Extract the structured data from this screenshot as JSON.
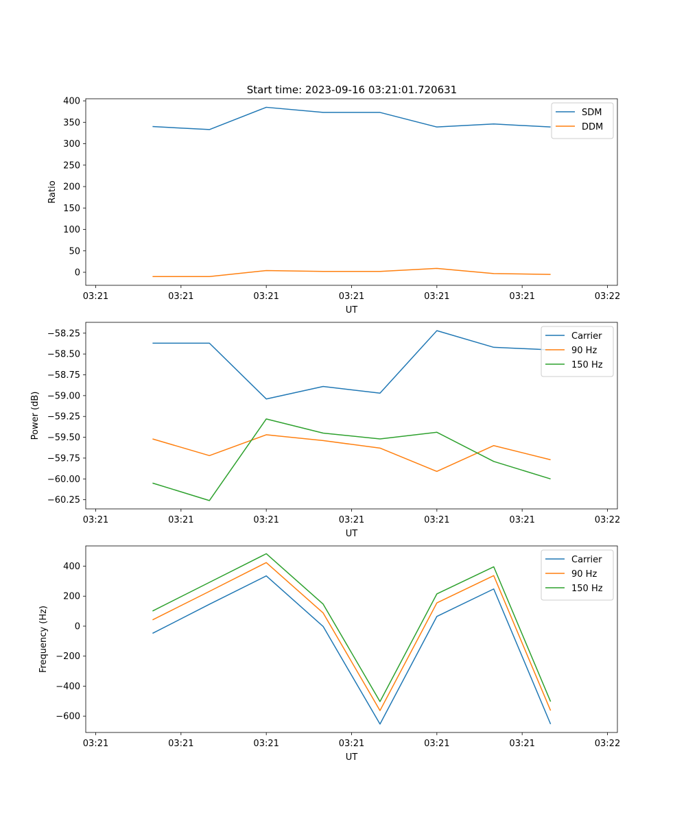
{
  "title": "Start time: 2023-09-16 03:21:01.720631",
  "colors": {
    "blue": "#1f77b4",
    "orange": "#ff7f0e",
    "green": "#2ca02c"
  },
  "chart_data": [
    {
      "type": "line",
      "title": "Start time: 2023-09-16 03:21:01.720631",
      "xlabel": "UT",
      "ylabel": "Ratio",
      "x_tick_labels": [
        "03:21",
        "03:21",
        "03:21",
        "03:21",
        "03:21",
        "03:21",
        "03:22"
      ],
      "y_ticks": [
        0,
        50,
        100,
        150,
        200,
        250,
        300,
        350,
        400
      ],
      "y_tick_labels": [
        "0",
        "50",
        "100",
        "150",
        "200",
        "250",
        "300",
        "350",
        "400"
      ],
      "ylim": [
        -30.4,
        404.9
      ],
      "xlim": [
        -0.175,
        9.175
      ],
      "x": [
        1,
        2,
        3,
        4,
        5,
        6,
        7,
        8
      ],
      "series": [
        {
          "name": "SDM",
          "color": "#1f77b4",
          "values": [
            340,
            333,
            385,
            373,
            373,
            339,
            346,
            339
          ]
        },
        {
          "name": "DDM",
          "color": "#ff7f0e",
          "values": [
            -10,
            -10,
            4,
            2,
            2,
            9,
            -3,
            -5
          ]
        }
      ],
      "legend_position": "top-right"
    },
    {
      "type": "line",
      "title": "",
      "xlabel": "UT",
      "ylabel": "Power (dB)",
      "x_tick_labels": [
        "03:21",
        "03:21",
        "03:21",
        "03:21",
        "03:21",
        "03:21",
        "03:22"
      ],
      "y_ticks": [
        -58.25,
        -58.5,
        -58.75,
        -59.0,
        -59.25,
        -59.5,
        -59.75,
        -60.0,
        -60.25
      ],
      "y_tick_labels": [
        "−58.25",
        "−58.50",
        "−58.75",
        "−59.00",
        "−59.25",
        "−59.50",
        "−59.75",
        "−60.00",
        "−60.25"
      ],
      "ylim": [
        -60.36,
        -58.12
      ],
      "xlim": [
        -0.175,
        9.175
      ],
      "x": [
        1,
        2,
        3,
        4,
        5,
        6,
        7,
        8
      ],
      "series": [
        {
          "name": "Carrier",
          "color": "#1f77b4",
          "values": [
            -58.37,
            -58.37,
            -59.04,
            -58.89,
            -58.97,
            -58.22,
            -58.42,
            -58.45
          ]
        },
        {
          "name": "90 Hz",
          "color": "#ff7f0e",
          "values": [
            -59.52,
            -59.72,
            -59.47,
            -59.54,
            -59.63,
            -59.91,
            -59.6,
            -59.77
          ]
        },
        {
          "name": "150 Hz",
          "color": "#2ca02c",
          "values": [
            -60.05,
            -60.26,
            -59.28,
            -59.45,
            -59.52,
            -59.44,
            -59.79,
            -60.0
          ]
        }
      ],
      "legend_position": "top-right"
    },
    {
      "type": "line",
      "title": "",
      "xlabel": "UT",
      "ylabel": "Frequency (Hz)",
      "x_tick_labels": [
        "03:21",
        "03:21",
        "03:21",
        "03:21",
        "03:21",
        "03:21",
        "03:22"
      ],
      "y_ticks": [
        -600,
        -400,
        -200,
        0,
        200,
        400
      ],
      "y_tick_labels": [
        "−600",
        "−400",
        "−200",
        "0",
        "200",
        "400"
      ],
      "ylim": [
        -709,
        535
      ],
      "xlim": [
        -0.175,
        9.175
      ],
      "x": [
        1,
        2,
        3,
        4,
        5,
        6,
        7,
        8
      ],
      "series": [
        {
          "name": "Carrier",
          "color": "#1f77b4",
          "values": [
            -48,
            146,
            335,
            -2,
            -653,
            65,
            248,
            -653
          ]
        },
        {
          "name": "90 Hz",
          "color": "#ff7f0e",
          "values": [
            42,
            232,
            424,
            88,
            -563,
            155,
            337,
            -563
          ]
        },
        {
          "name": "150 Hz",
          "color": "#2ca02c",
          "values": [
            101,
            292,
            483,
            147,
            -503,
            215,
            396,
            -503
          ]
        }
      ],
      "legend_position": "top-right"
    }
  ]
}
